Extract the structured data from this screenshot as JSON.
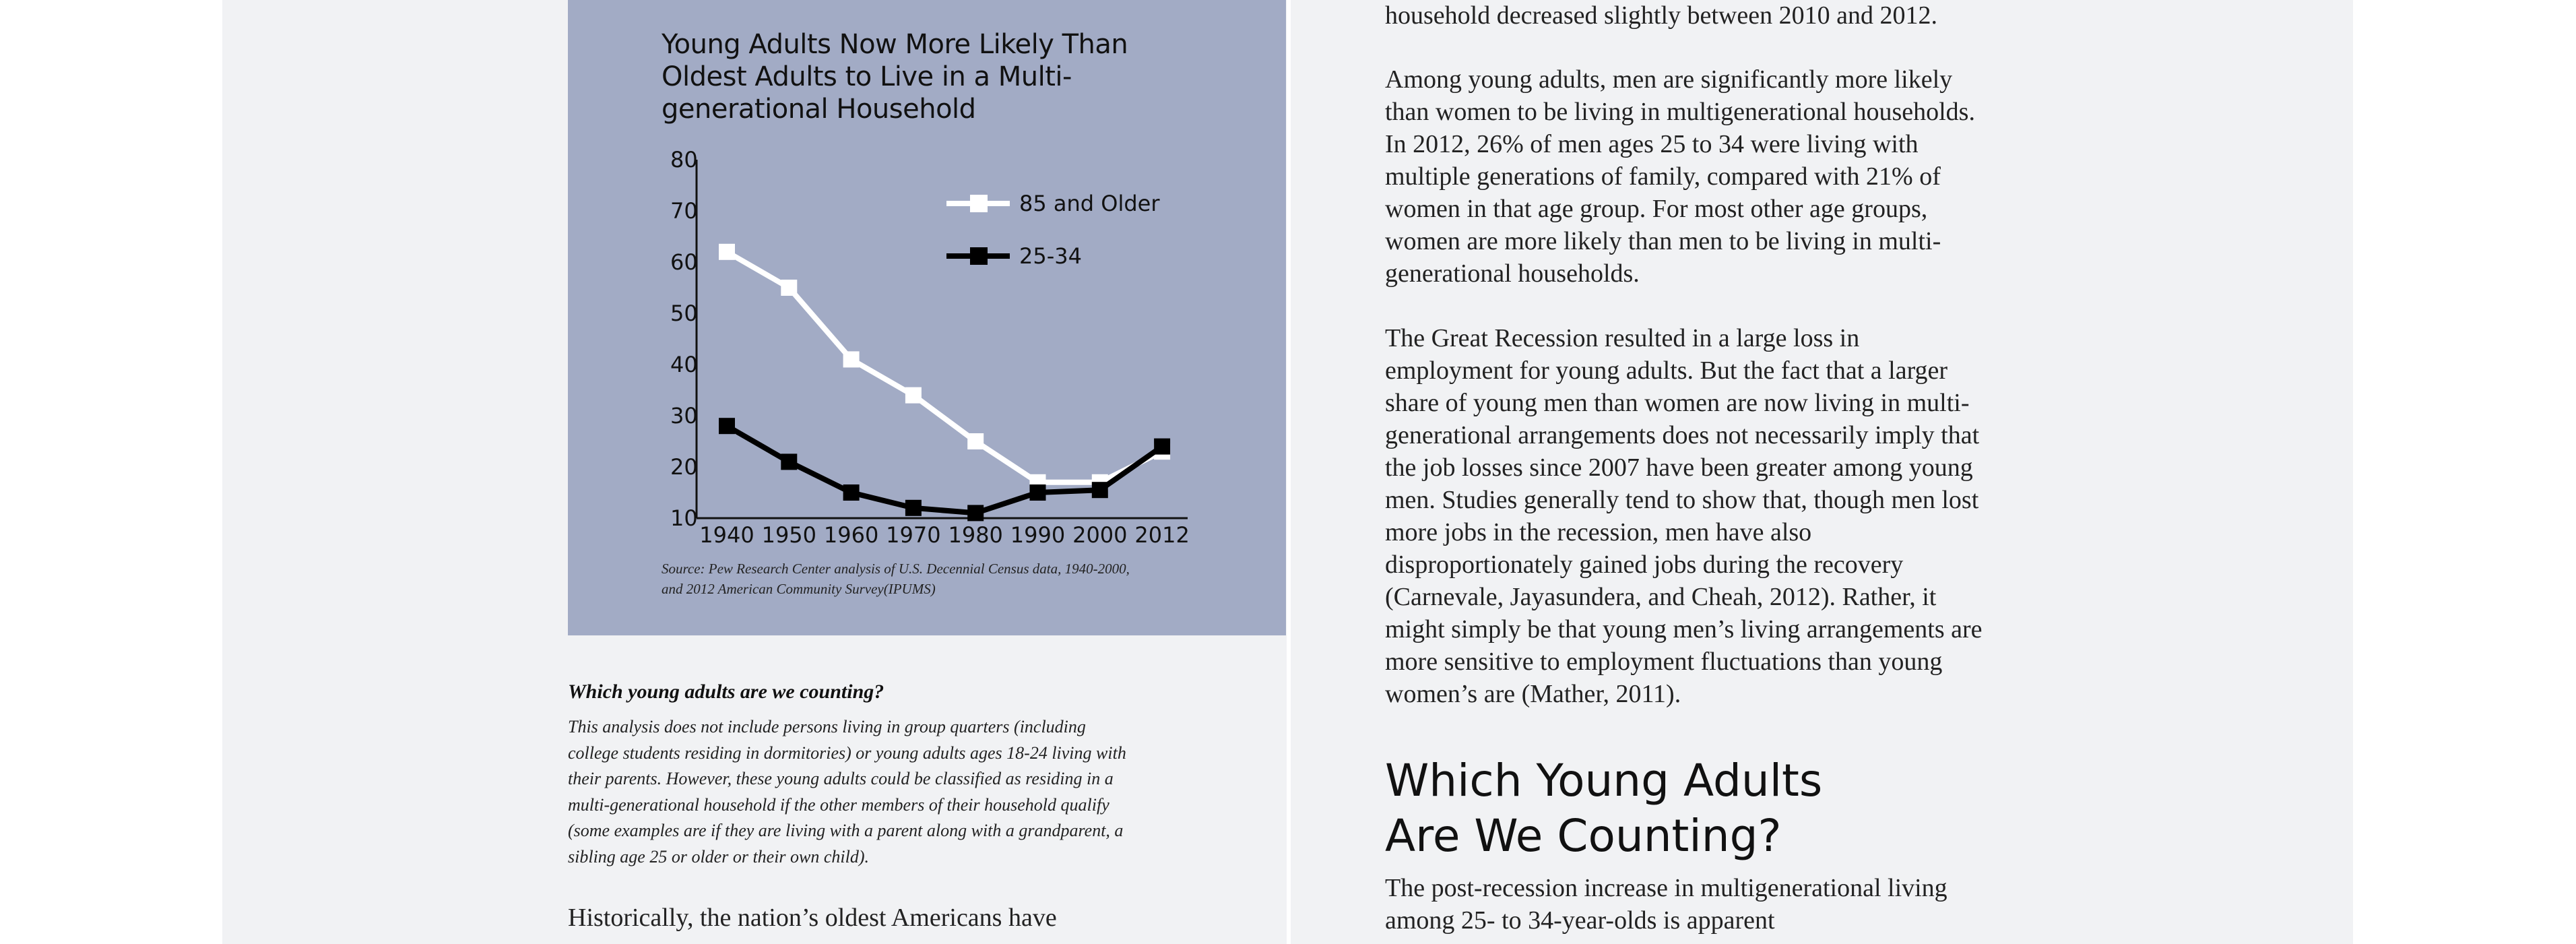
{
  "chart": {
    "title": "Young Adults Now More Likely Than Oldest Adults to Live in a Multi-generational Household",
    "source": "Source: Pew Research Center analysis of U.S. Decennial Census data, 1940-2000, and 2012 American Community Survey(IPUMS)"
  },
  "chart_data": {
    "type": "line",
    "title": "Young Adults Now More Likely Than Oldest Adults to Live in a Multi-generational Household",
    "x": [
      "1940",
      "1950",
      "1960",
      "1970",
      "1980",
      "1990",
      "2000",
      "2012"
    ],
    "ylim": [
      10,
      80
    ],
    "yticks": [
      "80",
      "70",
      "60",
      "50",
      "40",
      "30",
      "20",
      "10"
    ],
    "grid": false,
    "legend": "top-right",
    "series": [
      {
        "name": "85 and Older",
        "color": "#ffffff",
        "values": [
          62,
          55,
          41,
          34,
          25,
          17,
          17,
          23
        ]
      },
      {
        "name": "25-34",
        "color": "#000000",
        "values": [
          28,
          21,
          15,
          12,
          11,
          15,
          15.5,
          24
        ]
      }
    ]
  },
  "sidebar": {
    "heading": "Which young adults are we counting?",
    "body": "This analysis does not include persons living in group quarters (including college students residing in dormitories) or young adults ages 18-24 living with their parents. However, these young adults could be classified as residing in a multi-generational household if the other members of their household qualify (some examples are if they are living with a parent along with a grandparent, a sibling age 25 or older or their own child)."
  },
  "left_body": "Historically, the nation’s oldest Americans have",
  "right": {
    "p0": "household decreased slightly between 2010 and 2012.",
    "p1": "Among young adults, men are significantly more likely than women to be living in multigenerational households. In 2012, 26% of men ages 25 to 34 were living with multiple generations of family, compared with 21% of women in that age group. For most other age groups, women are more likely than men to be living in multi-generational households.",
    "p2": "The Great Recession resulted in a large loss in employment for young adults. But the fact that a larger share of young men than women are now living in multi-generational arrangements does not necessarily imply that the job losses since 2007 have been greater among young men. Studies generally tend to show that, though men lost more jobs in the recession, men have also disproportionately gained jobs during the recovery (Carnevale, Jayasundera, and Cheah, 2012). Rather, it might simply be that young men’s living arrangements are more sensitive to employment fluctuations than young women’s are (Mather, 2011).",
    "heading_line1": "Which Young Adults",
    "heading_line2": "Are We Counting?",
    "p3": "The post-recession increase in multigenerational living among 25- to 34-year-olds is apparent"
  }
}
